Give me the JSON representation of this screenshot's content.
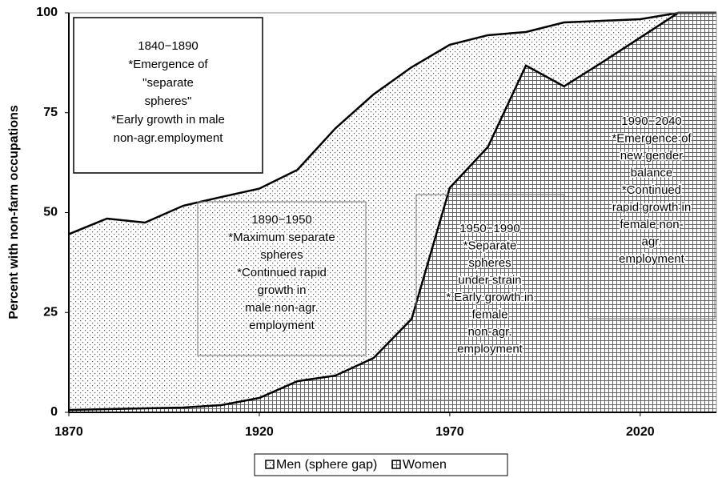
{
  "chart_data": {
    "type": "area",
    "y_label": "Percent with non-farm occupations",
    "x": [
      1870,
      1880,
      1890,
      1900,
      1910,
      1920,
      1930,
      1940,
      1950,
      1960,
      1970,
      1980,
      1990,
      2000,
      2010,
      2020,
      2030,
      2040
    ],
    "series": [
      {
        "name": "Men (sphere gap)",
        "color": "#000000",
        "pattern": "dots",
        "values": [
          44.6,
          48.5,
          47.5,
          51.7,
          53.9,
          56,
          60.7,
          71.1,
          79.6,
          86.4,
          92,
          94.4,
          95.2,
          97.6,
          98,
          98.4,
          100,
          100
        ]
      },
      {
        "name": "Women",
        "color": "#000000",
        "pattern": "grid",
        "values": [
          0.6,
          0.8,
          1,
          1.2,
          1.8,
          3.6,
          7.8,
          9.2,
          13.6,
          23.4,
          56.2,
          66.4,
          86.8,
          81.6,
          87.6,
          93.8,
          100,
          100
        ]
      }
    ],
    "xlim": [
      1870,
      2040
    ],
    "xticks": [
      1870,
      1920,
      1970,
      2020
    ],
    "ylim": [
      0,
      100
    ],
    "yticks": [
      0,
      25,
      50,
      75,
      100
    ],
    "legend": "bottom",
    "annotations": [
      {
        "lines": [
          "1840−1890",
          "*Emergence of",
          "\"separate",
          "spheres\"",
          "*Early growth in male",
          "non-agr.employment"
        ]
      },
      {
        "lines": [
          "1890−1950",
          "*Maximum separate",
          "spheres",
          "*Continued rapid",
          "growth in",
          "male non-agr.",
          "employment"
        ]
      },
      {
        "lines": [
          "1950−1990",
          "*Separate",
          "spheres",
          "under strain",
          "* Early growth in",
          "female",
          "non-agr.",
          "employment"
        ]
      },
      {
        "lines": [
          "1990−2040",
          "*Emergence of",
          "new gender",
          "balance",
          "*Continued",
          "rapid growth in",
          "female non-",
          "agr.",
          "employment"
        ]
      }
    ]
  }
}
